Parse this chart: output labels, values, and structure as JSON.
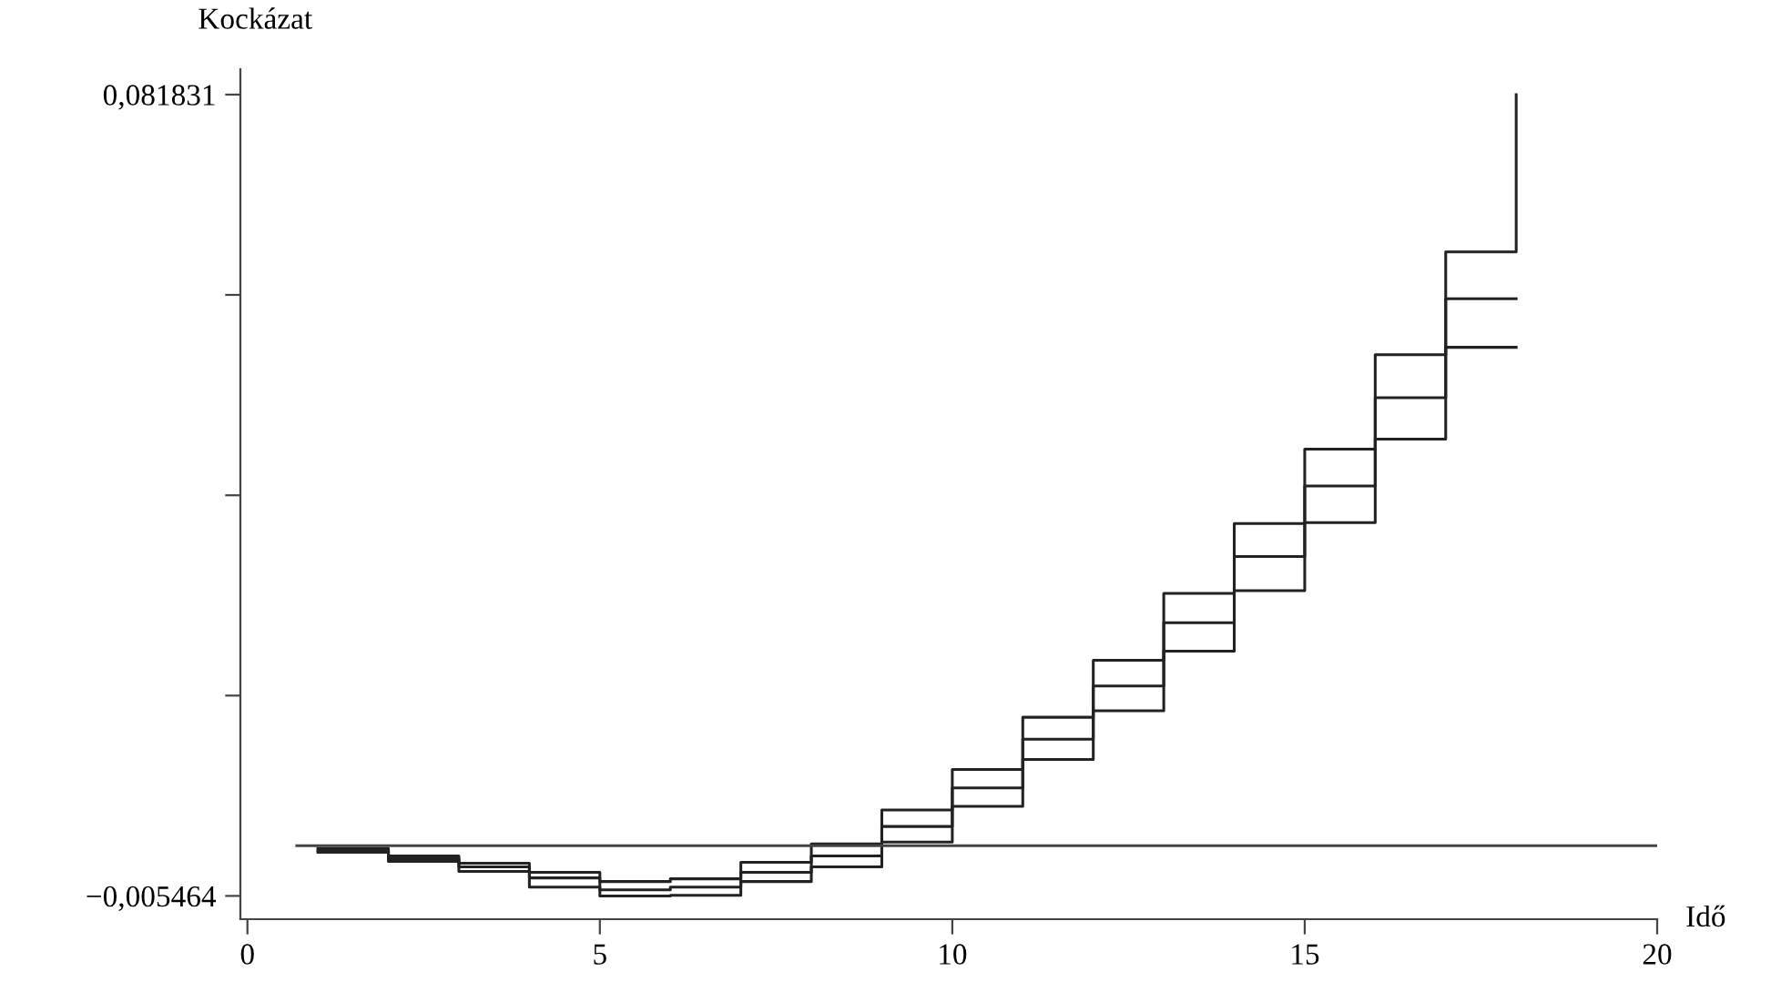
{
  "chart_data": {
    "type": "step",
    "xlabel": "Idő",
    "ylabel": "Kockázat",
    "xlim": [
      -0.1,
      20
    ],
    "ylim": [
      -0.008,
      0.0846
    ],
    "xticks": [
      0,
      5,
      10,
      15,
      20
    ],
    "yticks": [
      {
        "value": -0.005464,
        "label": "−0,005464"
      },
      {
        "value": 0.01636,
        "label": null
      },
      {
        "value": 0.03818,
        "label": null
      },
      {
        "value": 0.06001,
        "label": null
      },
      {
        "value": 0.081831,
        "label": "0,081831"
      }
    ],
    "grid": false,
    "legend": false,
    "marker": "none",
    "line_style": "solid",
    "x": [
      1,
      2,
      3,
      4,
      5,
      6,
      7,
      8,
      9,
      10,
      11,
      12,
      13,
      14,
      15,
      16,
      17,
      18
    ],
    "series": [
      {
        "color": "#222222",
        "values": [
          -0.0003,
          -0.0011,
          -0.0019,
          -0.0029,
          -0.0039,
          -0.0036,
          -0.0018,
          0.0002,
          0.0039,
          0.0083,
          0.014,
          0.0202,
          0.0275,
          0.0351,
          0.0432,
          0.0535,
          0.0647,
          0.081831
        ]
      },
      {
        "color": "#222222",
        "values": [
          -0.0005,
          -0.0014,
          -0.0023,
          -0.0035,
          -0.0048,
          -0.0045,
          -0.0029,
          -0.0011,
          0.0021,
          0.0063,
          0.0116,
          0.0174,
          0.0243,
          0.0315,
          0.0392,
          0.0488,
          0.0596,
          0.0596
        ]
      },
      {
        "color": "#222222",
        "values": [
          -0.0007,
          -0.0017,
          -0.0028,
          -0.0045,
          -0.005464,
          -0.0054,
          -0.0039,
          -0.0023,
          0.0004,
          0.0043,
          0.0094,
          0.0147,
          0.0212,
          0.0278,
          0.0352,
          0.0443,
          0.0543,
          0.0543
        ]
      },
      {
        "type": "line",
        "color": "#444444",
        "x": [
          0.7,
          20
        ],
        "values": [
          0,
          0
        ]
      }
    ]
  }
}
